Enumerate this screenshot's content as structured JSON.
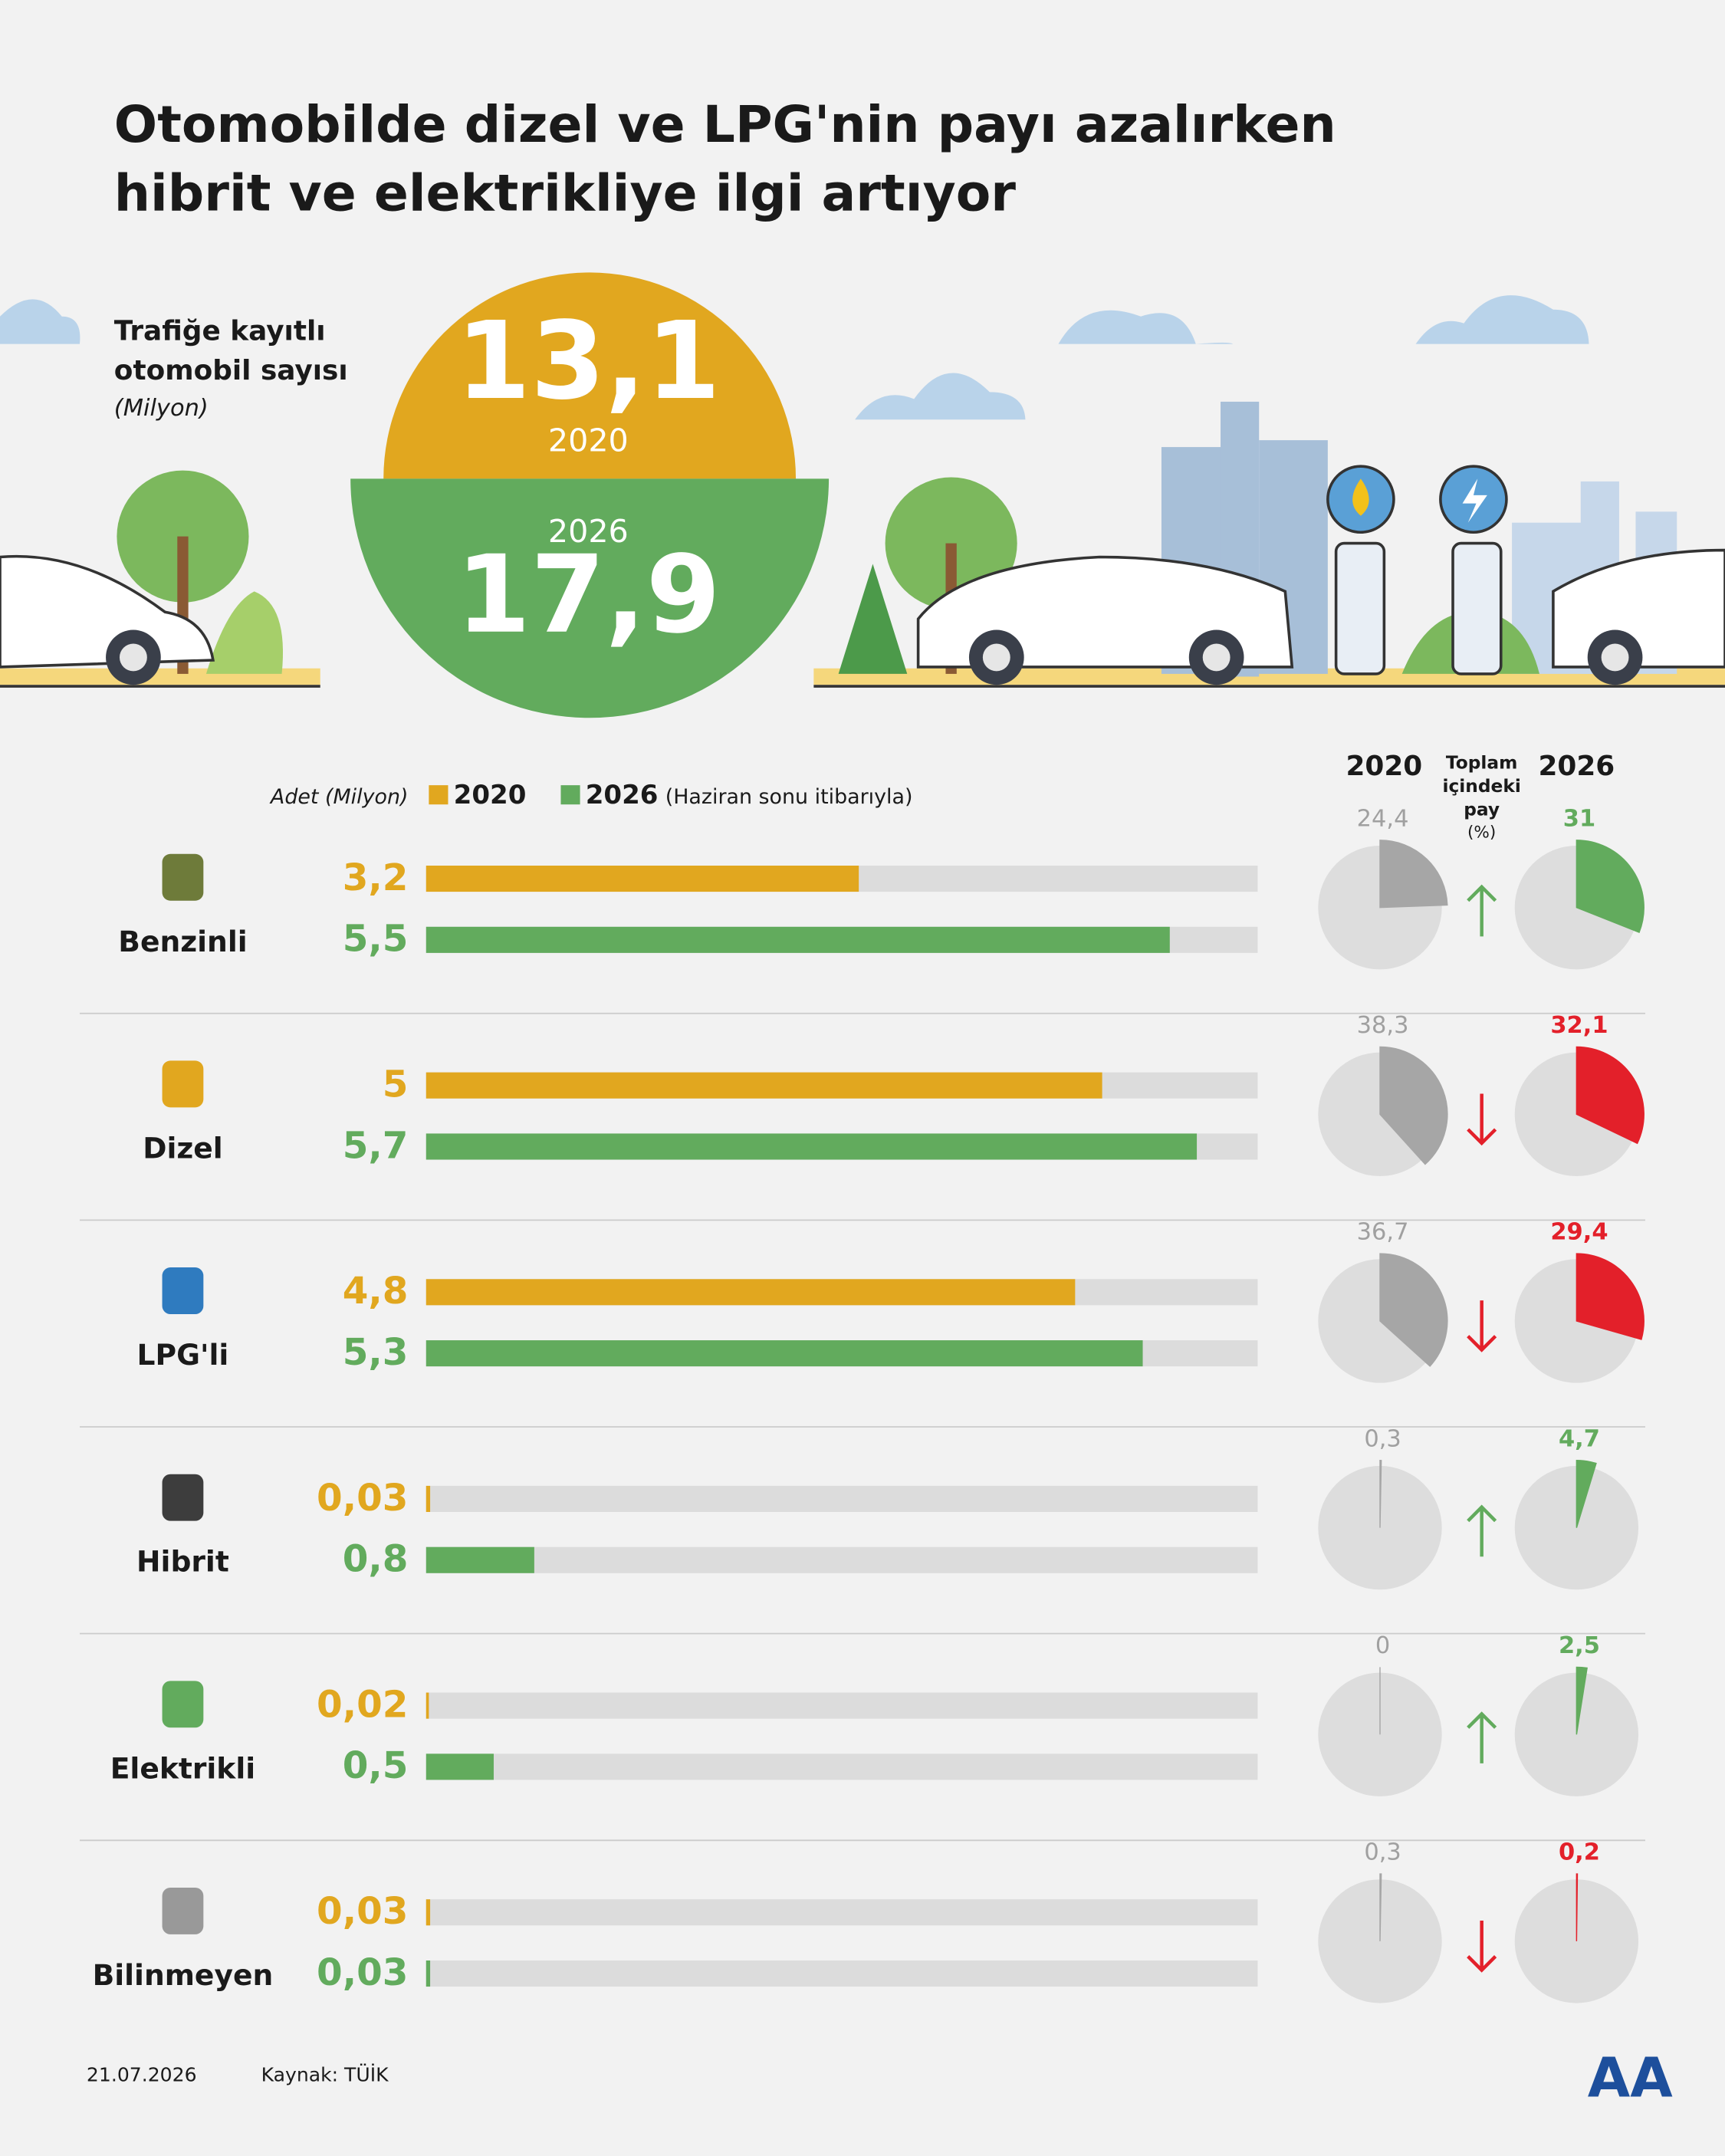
{
  "chart_data": {
    "type": "bar",
    "title": "Otomobilde dizel ve LPG'nin payı azalırken hibrit ve elektrikliye ilgi artıyor",
    "totals": {
      "label": "Trafiğe kayıtlı otomobil sayısı",
      "unit": "(Milyon)",
      "categories": [
        "2020",
        "2026"
      ],
      "values": [
        13.1,
        17.9
      ],
      "value_labels": [
        "13,1",
        "17,9"
      ],
      "colors": [
        "#e1a71f",
        "#62ab5d"
      ]
    },
    "axis_label": "Adet (Milyon)",
    "legend_note": "(Haziran sonu itibarıyla)",
    "categories": [
      "Benzinli",
      "Dizel",
      "LPG'li",
      "Hibrit",
      "Elektrikli",
      "Bilinmeyen"
    ],
    "series": [
      {
        "name": "2020",
        "color": "#e1a71f",
        "values": [
          3.2,
          5,
          4.8,
          0.03,
          0.02,
          0.03
        ],
        "value_labels": [
          "3,2",
          "5",
          "4,8",
          "0,03",
          "0,02",
          "0,03"
        ]
      },
      {
        "name": "2026",
        "color": "#62ab5d",
        "values": [
          5.5,
          5.7,
          5.3,
          0.8,
          0.5,
          0.03
        ],
        "value_labels": [
          "5,5",
          "5,7",
          "5,3",
          "0,8",
          "0,5",
          "0,03"
        ]
      }
    ],
    "xlim": [
      0,
      6.15
    ],
    "shares": {
      "title": "Toplam içindeki pay",
      "unit": "(%)",
      "series": [
        {
          "name": "2020",
          "color": "#a6a6a6",
          "values": [
            24.4,
            38.3,
            36.7,
            0.3,
            0,
            0.3
          ],
          "value_labels": [
            "24,4",
            "38,3",
            "36,7",
            "0,3",
            "0",
            "0,3"
          ]
        },
        {
          "name": "2026",
          "values": [
            31,
            32.1,
            29.4,
            4.7,
            2.5,
            0.2
          ],
          "value_labels": [
            "31",
            "32,1",
            "29,4",
            "4,7",
            "2,5",
            "0,2"
          ]
        }
      ],
      "trend": [
        "up",
        "down",
        "down",
        "up",
        "up",
        "down"
      ],
      "trend_colors": {
        "up": "#62ab5d",
        "down": "#e3202a"
      }
    },
    "footer": {
      "date": "21.07.2026",
      "source": "Kaynak: TÜİK",
      "logo": "AA"
    }
  }
}
